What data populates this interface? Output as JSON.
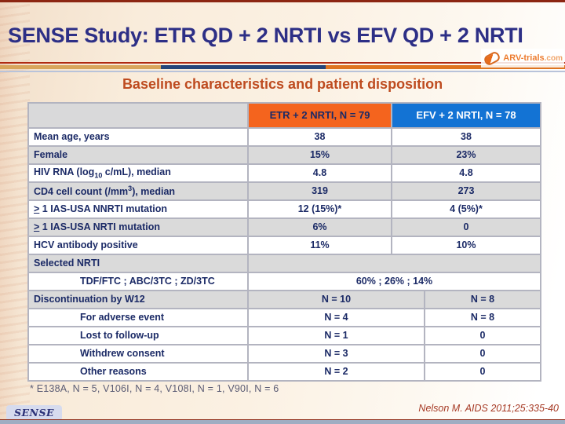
{
  "slide": {
    "title": "SENSE Study: ETR QD + 2 NRTI vs EFV QD + 2 NRTI",
    "subtitle": "Baseline characteristics and patient disposition",
    "logo_text": "ARV-trials",
    "logo_suffix": ".com",
    "badge": "SENSE",
    "footnote": "* E138A, N = 5, V106I, N = 4, V108I, N = 1, V90I, N = 6",
    "citation": "Nelson M. AIDS 2011;25:335-40"
  },
  "colors": {
    "etr_header_bg": "#F4641E",
    "efv_header_bg": "#1373D4",
    "title_navy": "#2D2F86",
    "subtitle_rust": "#BE4B1F",
    "table_text_navy": "#1B2A66",
    "row_alt_gray": "#DADADA",
    "citation_red": "#A63A25",
    "divider_tan": "#D8A55C",
    "divider_navy": "#24457A",
    "divider_orange": "#DE7420"
  },
  "table": {
    "headers": {
      "etr": "ETR + 2 NRTI, N = 79",
      "efv": "EFV + 2 NRTI, N = 78"
    },
    "rows": [
      {
        "label": "Mean age, years",
        "v1": "38",
        "v2": "38"
      },
      {
        "label": "Female",
        "v1": "15%",
        "v2": "23%"
      },
      {
        "label_pre": "HIV RNA (log",
        "label_sub": "10",
        "label_post": " c/mL), median",
        "v1": "4.8",
        "v2": "4.8"
      },
      {
        "label_pre": "CD4 cell count (/mm",
        "label_sup": "3",
        "label_post": "), median",
        "v1": "319",
        "v2": "273"
      },
      {
        "label_geq": ">",
        "label_rest": " 1 IAS-USA NNRTI mutation",
        "v1": "12 (15%)*",
        "v2": "4 (5%)*"
      },
      {
        "label_geq": ">",
        "label_rest": " 1 IAS-USA NRTI mutation",
        "v1": "6%",
        "v2": "0"
      },
      {
        "label": "HCV antibody positive",
        "v1": "11%",
        "v2": "10%"
      },
      {
        "label": "Selected NRTI"
      },
      {
        "label": "TDF/FTC ;  ABC/3TC ; ZD/3TC",
        "vspan": "60% ; 26% ; 14%"
      },
      {
        "label": "Discontinuation by W12",
        "v1": "N = 10",
        "v2": "N = 8"
      },
      {
        "label": "For adverse event",
        "v1": "N = 4",
        "v2": "N = 8"
      },
      {
        "label": "Lost to follow-up",
        "v1": "N = 1",
        "v2": "0"
      },
      {
        "label": "Withdrew consent",
        "v1": "N = 3",
        "v2": "0"
      },
      {
        "label": "Other reasons",
        "v1": "N = 2",
        "v2": "0"
      }
    ]
  }
}
